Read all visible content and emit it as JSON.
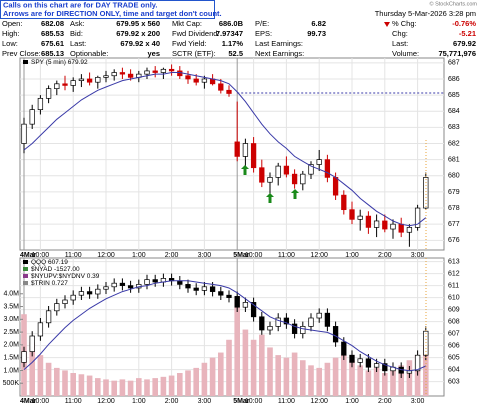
{
  "watermark": "© StockCharts.com",
  "annotation": [
    "Calls on this chart are for DAY TRADE only.",
    "Arrows are for DIRECTION ONLY, time and target don't count."
  ],
  "quote": {
    "columns": [
      [
        [
          "Open:",
          "682.08"
        ],
        [
          "High:",
          "685.53"
        ],
        [
          "Low:",
          "675.61"
        ],
        [
          "Prev Close:",
          "685.13"
        ]
      ],
      [
        [
          "Ask:",
          "679.95 x 560"
        ],
        [
          "Bid:",
          "679.92 x 200"
        ],
        [
          "Last:",
          "679.92 x 40"
        ],
        [
          "Optionable:",
          "yes"
        ]
      ],
      [
        [
          "Mkt Cap:",
          "686.0B"
        ],
        [
          "Fwd Dividend:",
          "7.97347"
        ],
        [
          "Fwd Yield:",
          "1.17%"
        ],
        [
          "SCTR (ETF):",
          "52.5"
        ]
      ],
      [
        [
          "P/E:",
          "6.82"
        ],
        [
          "EPS:",
          "99.73"
        ],
        [
          "Last Earnings:"
        ],
        [
          "Next Earnings:"
        ]
      ]
    ],
    "date": "Thursday 5-Mar-2026 3:28 pm",
    "summary": [
      [
        "% Chg:",
        "-0.76%"
      ],
      [
        "Chg:",
        "-5.21"
      ],
      [
        "Last:",
        "679.92"
      ],
      [
        "Volume:",
        "75,771,976"
      ]
    ]
  },
  "chart_data": [
    {
      "type": "candlestick",
      "title": "SPY (5 min) 679.92",
      "categories": [
        "4Mar",
        null,
        "10:00",
        null,
        null,
        null,
        "11:00",
        null,
        null,
        null,
        "12:00",
        null,
        null,
        null,
        "1:00",
        null,
        null,
        null,
        "2:00",
        null,
        null,
        null,
        "3:00",
        null,
        null,
        null,
        "5Mar",
        null,
        "10:00",
        null,
        null,
        null,
        "11:00",
        null,
        null,
        null,
        "12:00",
        null,
        null,
        null,
        "1:00",
        null,
        null,
        null,
        "2:00",
        null,
        null,
        null,
        "3:00",
        null
      ],
      "open": [
        682.0,
        683.2,
        684.1,
        684.8,
        685.4,
        685.7,
        685.6,
        685.9,
        686.0,
        685.8,
        686.1,
        686.2,
        686.4,
        686.3,
        686.1,
        686.3,
        686.5,
        686.4,
        686.6,
        686.5,
        686.2,
        686.0,
        685.8,
        686.0,
        685.7,
        685.3,
        682.1,
        681.2,
        682.0,
        680.5,
        679.6,
        679.9,
        680.6,
        680.1,
        679.5,
        680.1,
        680.7,
        681.0,
        679.9,
        678.8,
        677.9,
        677.3,
        677.5,
        676.8,
        677.2,
        676.7,
        677.0,
        676.5,
        676.8,
        678.0
      ],
      "high": [
        683.6,
        684.4,
        685.0,
        685.6,
        685.9,
        686.2,
        686.1,
        686.3,
        686.4,
        686.2,
        686.5,
        686.6,
        686.7,
        686.6,
        686.5,
        686.7,
        686.8,
        686.7,
        686.9,
        686.8,
        686.5,
        686.3,
        686.2,
        686.3,
        686.0,
        685.6,
        684.6,
        682.3,
        682.4,
        681.0,
        680.2,
        680.8,
        681.2,
        680.4,
        680.3,
        680.9,
        681.6,
        681.3,
        680.2,
        679.1,
        678.4,
        677.9,
        677.8,
        677.6,
        677.6,
        677.3,
        677.4,
        677.0,
        678.2,
        680.2
      ],
      "low": [
        681.4,
        682.9,
        683.8,
        684.5,
        685.0,
        685.3,
        685.2,
        685.5,
        685.6,
        685.4,
        685.8,
        685.9,
        686.0,
        685.9,
        685.8,
        686.0,
        686.1,
        686.0,
        686.2,
        686.0,
        685.7,
        685.6,
        685.4,
        685.6,
        685.1,
        684.9,
        680.9,
        680.6,
        680.2,
        679.3,
        678.9,
        679.4,
        679.9,
        679.2,
        679.1,
        679.8,
        680.3,
        679.6,
        678.5,
        677.6,
        677.0,
        676.6,
        676.4,
        676.2,
        676.5,
        676.1,
        676.2,
        675.6,
        676.6,
        677.9
      ],
      "close": [
        683.2,
        684.1,
        684.8,
        685.4,
        685.7,
        685.6,
        685.9,
        686.0,
        685.8,
        686.1,
        686.2,
        686.4,
        686.3,
        686.1,
        686.3,
        686.5,
        686.4,
        686.6,
        686.5,
        686.2,
        686.0,
        685.8,
        686.0,
        685.7,
        685.3,
        685.1,
        681.2,
        682.0,
        680.5,
        679.6,
        679.9,
        680.6,
        680.1,
        679.5,
        680.1,
        680.7,
        681.0,
        679.9,
        678.8,
        677.9,
        677.3,
        677.5,
        676.8,
        677.2,
        676.7,
        677.0,
        676.5,
        676.8,
        678.0,
        679.9
      ],
      "up_color": "#000000",
      "down_color": "#cc0000",
      "ma": {
        "color": "#3a3aa8",
        "values": [
          681.6,
          682.0,
          682.5,
          683.0,
          683.5,
          683.9,
          684.3,
          684.7,
          685.0,
          685.3,
          685.5,
          685.7,
          685.9,
          686.0,
          686.1,
          686.2,
          686.3,
          686.3,
          686.4,
          686.4,
          686.3,
          686.2,
          686.1,
          686.0,
          685.9,
          685.7,
          685.2,
          684.6,
          683.9,
          683.2,
          682.6,
          682.1,
          681.7,
          681.2,
          680.9,
          680.6,
          680.4,
          680.2,
          679.9,
          679.5,
          679.1,
          678.6,
          678.2,
          677.8,
          677.5,
          677.2,
          677.0,
          676.9,
          677.0,
          677.4
        ]
      },
      "ylim": [
        675.4,
        687.3
      ],
      "yticks": [
        676,
        677,
        678,
        679,
        680,
        681,
        682,
        683,
        684,
        685,
        686,
        687
      ],
      "grid": true
    },
    {
      "type": "candlestick",
      "title": "QQQ 607.19",
      "overlays": [
        "$NYAD -1527.00",
        "$NYUPV:$NYDNV 0.39",
        "$TRIN 0.727"
      ],
      "categories": [
        "4Mar",
        null,
        "10:00",
        null,
        null,
        null,
        "11:00",
        null,
        null,
        null,
        "12:00",
        null,
        null,
        null,
        "1:00",
        null,
        null,
        null,
        "2:00",
        null,
        null,
        null,
        "3:00",
        null,
        null,
        null,
        "5Mar",
        null,
        "10:00",
        null,
        null,
        null,
        "11:00",
        null,
        null,
        null,
        "12:00",
        null,
        null,
        null,
        "1:00",
        null,
        null,
        null,
        "2:00",
        null,
        null,
        null,
        "3:00",
        null
      ],
      "open": [
        604.6,
        605.5,
        606.8,
        607.9,
        608.9,
        609.5,
        609.8,
        610.2,
        610.5,
        610.3,
        610.7,
        610.9,
        611.2,
        611.0,
        610.8,
        611.1,
        611.5,
        611.3,
        611.6,
        611.4,
        611.1,
        610.8,
        610.6,
        610.9,
        610.5,
        610.2,
        610.1,
        609.2,
        609.6,
        608.4,
        607.3,
        607.6,
        608.3,
        607.8,
        607.0,
        607.6,
        608.3,
        608.7,
        607.6,
        606.3,
        605.2,
        604.6,
        604.9,
        604.2,
        604.5,
        603.9,
        604.2,
        603.7,
        603.9,
        605.2
      ],
      "high": [
        605.9,
        607.2,
        608.3,
        609.3,
        609.9,
        610.2,
        610.6,
        610.9,
        610.9,
        611.1,
        611.3,
        611.6,
        611.6,
        611.4,
        611.5,
        611.9,
        611.9,
        612.0,
        612.0,
        611.8,
        611.5,
        611.2,
        611.3,
        611.3,
        610.9,
        610.6,
        610.5,
        610.0,
        610.0,
        608.8,
        608.0,
        608.7,
        608.7,
        608.2,
        608.0,
        608.7,
        609.1,
        609.1,
        608.0,
        606.7,
        605.6,
        605.3,
        605.3,
        604.9,
        604.9,
        604.6,
        604.6,
        604.3,
        605.6,
        607.6
      ],
      "low": [
        604.2,
        605.1,
        606.4,
        607.5,
        608.5,
        609.1,
        609.4,
        609.8,
        609.9,
        609.9,
        610.3,
        610.5,
        610.6,
        610.4,
        610.4,
        610.7,
        610.9,
        610.9,
        611.0,
        610.7,
        610.4,
        610.2,
        610.2,
        610.1,
        609.8,
        609.6,
        608.8,
        608.8,
        608.0,
        606.9,
        606.9,
        607.2,
        607.4,
        606.6,
        606.6,
        607.2,
        607.9,
        607.2,
        605.9,
        604.8,
        604.2,
        604.2,
        603.8,
        603.8,
        603.5,
        603.5,
        603.3,
        603.3,
        603.5,
        604.8
      ],
      "close": [
        605.5,
        606.8,
        607.9,
        608.9,
        609.5,
        609.8,
        610.2,
        610.5,
        610.3,
        610.7,
        610.9,
        611.2,
        611.0,
        610.8,
        611.1,
        611.5,
        611.3,
        611.6,
        611.4,
        611.1,
        610.8,
        610.6,
        610.9,
        610.5,
        610.2,
        610.0,
        609.2,
        609.6,
        608.4,
        607.3,
        607.6,
        608.3,
        607.8,
        607.0,
        607.6,
        608.3,
        608.7,
        607.6,
        606.3,
        605.2,
        604.6,
        604.9,
        604.2,
        604.5,
        603.9,
        604.2,
        603.7,
        603.9,
        605.2,
        607.2
      ],
      "up_color": "#000000",
      "down_color": "#000000",
      "ma": {
        "color": "#3a3aa8",
        "values": [
          604.0,
          604.6,
          605.3,
          606.1,
          606.8,
          607.5,
          608.1,
          608.6,
          609.1,
          609.5,
          609.9,
          610.2,
          610.5,
          610.7,
          610.9,
          611.0,
          611.2,
          611.3,
          611.4,
          611.4,
          611.4,
          611.3,
          611.2,
          611.1,
          611.0,
          610.8,
          610.4,
          609.9,
          609.4,
          608.9,
          608.4,
          608.1,
          607.9,
          607.6,
          607.4,
          607.3,
          607.2,
          607.1,
          606.8,
          606.4,
          606.0,
          605.5,
          605.1,
          604.7,
          604.4,
          604.2,
          604.0,
          603.9,
          604.0,
          604.3
        ]
      },
      "volume": {
        "color": "#e8b4bc",
        "axis": "y2",
        "values": [
          3200000,
          2100000,
          1600000,
          1300000,
          1100000,
          1000000,
          900000,
          850000,
          800000,
          700000,
          650000,
          600000,
          650000,
          600000,
          700000,
          650000,
          700000,
          750000,
          800000,
          900000,
          1000000,
          1100000,
          1300000,
          1500000,
          1700000,
          2200000,
          3900000,
          2600000,
          2200000,
          2400000,
          1900000,
          1600000,
          1500000,
          1700000,
          1400000,
          1200000,
          1100000,
          1300000,
          1500000,
          1600000,
          1400000,
          1200000,
          1000000,
          1100000,
          900000,
          1000000,
          1200000,
          1400000,
          1600000,
          2000000
        ]
      },
      "ylim": [
        601.8,
        613.3
      ],
      "yticks": [
        603,
        604,
        605,
        606,
        607,
        608,
        609,
        610,
        611,
        612,
        613
      ],
      "y2lim": [
        0,
        5400000
      ],
      "y2ticks": [
        {
          "value": 500000,
          "label": "500K"
        },
        {
          "value": 1000000,
          "label": "1.0M"
        },
        {
          "value": 1500000,
          "label": "1.5M"
        },
        {
          "value": 2000000,
          "label": "2.0M"
        },
        {
          "value": 2500000,
          "label": "2.5M"
        },
        {
          "value": 3000000,
          "label": "3.0M"
        },
        {
          "value": 3500000,
          "label": "3.5M"
        },
        {
          "value": 4000000,
          "label": "4.0M"
        }
      ],
      "grid": true
    }
  ]
}
